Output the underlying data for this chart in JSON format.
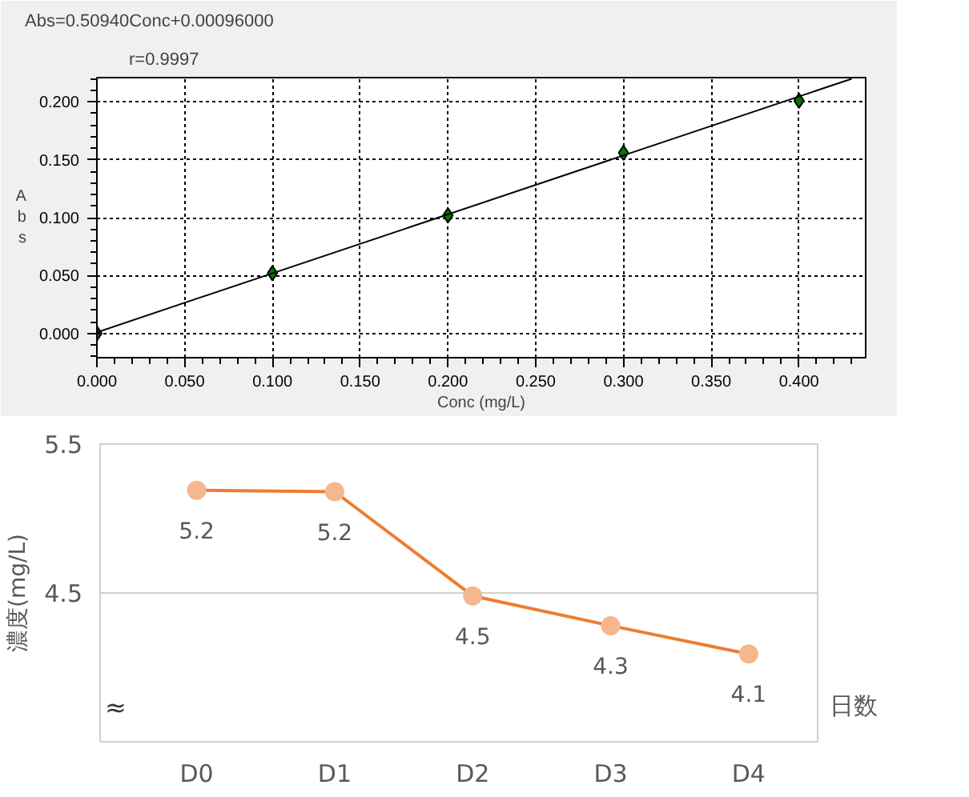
{
  "chart_data": [
    {
      "type": "scatter",
      "title": "Abs=0.50940Conc+0.00096000",
      "subtitle": "r=0.9997",
      "xlabel": "Conc (mg/L)",
      "ylabel": "Abs",
      "xlim": [
        0,
        0.438
      ],
      "ylim": [
        -0.021,
        0.221
      ],
      "xticks": [
        {
          "value": 0,
          "label": "0.000"
        },
        {
          "value": 0.05,
          "label": "0.050"
        },
        {
          "value": 0.1,
          "label": "0.100"
        },
        {
          "value": 0.15,
          "label": "0.150"
        },
        {
          "value": 0.2,
          "label": "0.200"
        },
        {
          "value": 0.25,
          "label": "0.250"
        },
        {
          "value": 0.3,
          "label": "0.300"
        },
        {
          "value": 0.35,
          "label": "0.350"
        },
        {
          "value": 0.4,
          "label": "0.400"
        }
      ],
      "yticks": [
        {
          "value": 0,
          "label": "0.000"
        },
        {
          "value": 0.05,
          "label": "0.050"
        },
        {
          "value": 0.1,
          "label": "0.100"
        },
        {
          "value": 0.15,
          "label": "0.150"
        },
        {
          "value": 0.2,
          "label": "0.200"
        }
      ],
      "grid": true,
      "series": [
        {
          "type": "scatter",
          "marker": "diamond",
          "color": "#007a00",
          "x": [
            0,
            0.1,
            0.2,
            0.3,
            0.4
          ],
          "values": [
            0.0,
            0.052,
            0.102,
            0.156,
            0.201
          ]
        },
        {
          "type": "line",
          "line_style": "solid",
          "color": "#000000",
          "x": [
            0,
            0.43
          ],
          "values": [
            0.001,
            0.22
          ]
        }
      ]
    },
    {
      "type": "line",
      "ylabel": "濃度(mg/L)",
      "xlabel": "日数",
      "categories": [
        "D0",
        "D1",
        "D2",
        "D3",
        "D4"
      ],
      "ylim": [
        3.5,
        5.5
      ],
      "yticks": [
        {
          "value": 3.5,
          "label": null
        },
        4.5,
        5.5
      ],
      "grid": "y",
      "marker": "circle",
      "annotations": [
        "≈"
      ],
      "series": [
        {
          "color": "#ed7d31",
          "values": [
            5.19,
            5.18,
            4.48,
            4.28,
            4.09
          ],
          "value_labels": [
            "5.2",
            "5.2",
            "4.5",
            "4.3",
            "4.1"
          ]
        }
      ]
    }
  ]
}
